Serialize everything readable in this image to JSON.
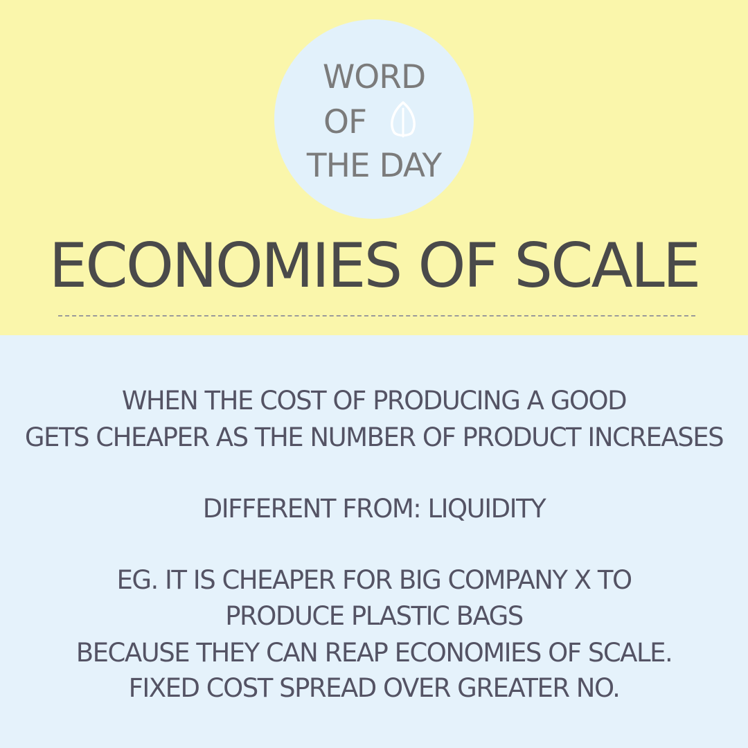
{
  "badge": {
    "line1": "WORD",
    "line2": "OF",
    "line3": "THE DAY",
    "icon": "leaf-icon"
  },
  "headline": "ECONOMIES OF SCALE",
  "definition": {
    "line1": "WHEN THE COST OF PRODUCING A GOOD",
    "line2": "GETS CHEAPER AS THE NUMBER OF PRODUCT INCREASES"
  },
  "different_from": "DIFFERENT FROM: LIQUIDITY",
  "example": {
    "line1": "EG. IT IS CHEAPER FOR BIG COMPANY X TO",
    "line2": "PRODUCE PLASTIC BAGS",
    "line3": "BECAUSE THEY CAN REAP ECONOMIES OF SCALE.",
    "line4": "FIXED COST SPREAD OVER GREATER NO."
  },
  "colors": {
    "top_background": "#faf6ab",
    "bottom_background": "#e5f2fb",
    "badge_background": "#e2f1fb",
    "badge_text": "#7b7b7b",
    "headline_text": "#4a4a4a",
    "body_text": "#545364"
  }
}
